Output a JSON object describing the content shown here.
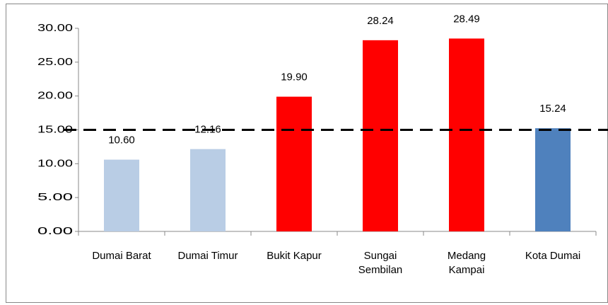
{
  "chart_data": {
    "type": "bar",
    "categories": [
      "Dumai Barat",
      "Dumai Timur",
      "Bukit Kapur",
      "Sungai Sembilan",
      "Medang Kampai",
      "Kota Dumai"
    ],
    "values": [
      10.6,
      12.16,
      19.9,
      28.24,
      28.49,
      15.24
    ],
    "value_labels": [
      "10.60",
      "12.16",
      "19.90",
      "28.24",
      "28.49",
      "15.24"
    ],
    "colors": [
      "#b9cde5",
      "#b9cde5",
      "#ff0000",
      "#ff0000",
      "#ff0000",
      "#4f81bd"
    ],
    "ylim": [
      0,
      30
    ],
    "yticks": [
      {
        "value": 0,
        "label": "0.00"
      },
      {
        "value": 5,
        "label": "5.00"
      },
      {
        "value": 10,
        "label": "10.00"
      },
      {
        "value": 15,
        "label": "15.00"
      },
      {
        "value": 20,
        "label": "20.00"
      },
      {
        "value": 25,
        "label": "25.00"
      },
      {
        "value": 30,
        "label": "30.00"
      }
    ],
    "reference_line": 15,
    "grid": false
  }
}
